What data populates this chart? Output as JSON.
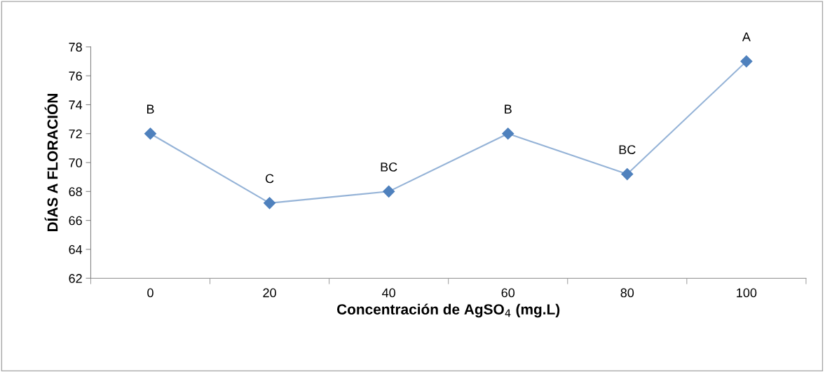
{
  "chart_data": {
    "type": "line",
    "xlabel": "Concentración de AgSO$_{4}$ (mg.L)",
    "ylabel": "DÍAS A FLORACIÓN",
    "categories": [
      "0",
      "20",
      "40",
      "60",
      "80",
      "100"
    ],
    "series": [
      {
        "color": "#4f81bd",
        "values": [
          72,
          67.2,
          68,
          72,
          69.2,
          77
        ]
      }
    ],
    "ylim": [
      62,
      78
    ],
    "yticks": [
      62,
      64,
      66,
      68,
      70,
      72,
      74,
      76,
      78
    ],
    "marker": "diamond",
    "line_style": "solid",
    "grid": false,
    "legend": false,
    "annotations": [
      {
        "text": "B",
        "x": "0",
        "y": 72
      },
      {
        "text": "C",
        "x": "20",
        "y": 67.2
      },
      {
        "text": "BC",
        "x": "40",
        "y": 68
      },
      {
        "text": "B",
        "x": "60",
        "y": 72
      },
      {
        "text": "BC",
        "x": "80",
        "y": 69.2
      },
      {
        "text": "A",
        "x": "100",
        "y": 77
      }
    ]
  }
}
